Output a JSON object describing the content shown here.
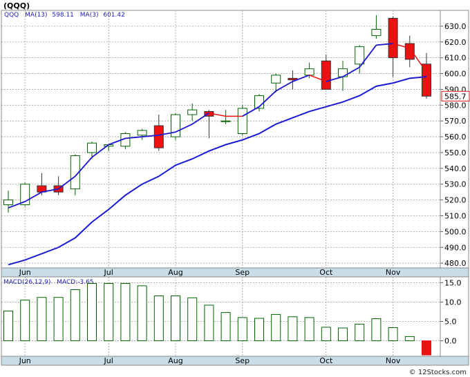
{
  "header": {
    "symbol_title": "(QQQ)"
  },
  "price_panel": {
    "legend": {
      "symbol": "QQQ",
      "ma_long_label": "MA(13)",
      "ma_long_value": "598.11",
      "ma_short_label": "MA(3)",
      "ma_short_value": "601.42"
    },
    "last_price_label": "585.7",
    "last_price_value": 585.7,
    "y_ticks": [
      "480.0",
      "490.0",
      "500.0",
      "510.0",
      "520.0",
      "530.0",
      "540.0",
      "550.0",
      "560.0",
      "570.0",
      "580.0",
      "590.0",
      "600.0",
      "610.0",
      "620.0",
      "630.0"
    ],
    "y_tick_values": [
      480,
      490,
      500,
      510,
      520,
      530,
      540,
      550,
      560,
      570,
      580,
      590,
      600,
      610,
      620,
      630
    ],
    "x_labels": [
      "Jun",
      "Jul",
      "Aug",
      "Sep",
      "Oct",
      "Nov"
    ],
    "x_label_weeks": [
      1.0,
      6.0,
      10.0,
      14.0,
      19.0,
      23.0
    ]
  },
  "macd_panel": {
    "legend": {
      "label": "MACD(26,12,9)",
      "value_label": "MACD:-3.65"
    },
    "y_ticks": [
      "15.0",
      "10.0",
      "5.0",
      "0.0"
    ],
    "y_tick_values": [
      15,
      10,
      5,
      0
    ],
    "x_labels": [
      "Jun",
      "Jul",
      "Aug",
      "Sep",
      "Oct",
      "Nov"
    ]
  },
  "footer": {
    "credit": "© 12Stocks.com"
  },
  "colors": {
    "up_candle_fill": "#ffffff",
    "up_candle_stroke": "#006400",
    "down_candle_fill": "#ee1111",
    "ma_short": "#ee1111",
    "ma_long": "#1a1ad6",
    "legend_text": "#2020c0",
    "axis_band": "#c8dde8",
    "macd_bar_stroke": "#006400",
    "macd_negative": "#ee1111"
  },
  "chart_data": [
    {
      "type": "candlestick",
      "title": "(QQQ)",
      "frequency": "weekly",
      "ylim": [
        477,
        640
      ],
      "grid": true,
      "x_axis_labels": [
        "Jun",
        "Jul",
        "Aug",
        "Sep",
        "Oct",
        "Nov"
      ],
      "candles": [
        {
          "o": 517,
          "h": 526,
          "l": 512,
          "c": 520
        },
        {
          "o": 517,
          "h": 531,
          "l": 516,
          "c": 530
        },
        {
          "o": 529,
          "h": 537,
          "l": 523,
          "c": 525
        },
        {
          "o": 529,
          "h": 535,
          "l": 523,
          "c": 525
        },
        {
          "o": 527,
          "h": 549,
          "l": 523,
          "c": 548
        },
        {
          "o": 550,
          "h": 557,
          "l": 546,
          "c": 556
        },
        {
          "o": 554,
          "h": 555,
          "l": 551,
          "c": 555
        },
        {
          "o": 554,
          "h": 563,
          "l": 552,
          "c": 562
        },
        {
          "o": 561,
          "h": 565,
          "l": 558,
          "c": 564
        },
        {
          "o": 567,
          "h": 574,
          "l": 551,
          "c": 553
        },
        {
          "o": 560,
          "h": 575,
          "l": 558,
          "c": 574
        },
        {
          "o": 574,
          "h": 581,
          "l": 570,
          "c": 577
        },
        {
          "o": 576,
          "h": 577,
          "l": 559,
          "c": 573
        },
        {
          "o": 570,
          "h": 577,
          "l": 568,
          "c": 570
        },
        {
          "o": 562,
          "h": 580,
          "l": 561,
          "c": 578
        },
        {
          "o": 578,
          "h": 587,
          "l": 576,
          "c": 586
        },
        {
          "o": 594,
          "h": 600,
          "l": 588,
          "c": 599
        },
        {
          "o": 597,
          "h": 602,
          "l": 590,
          "c": 596
        },
        {
          "o": 599,
          "h": 607,
          "l": 597,
          "c": 603
        },
        {
          "o": 608,
          "h": 612,
          "l": 591,
          "c": 590
        },
        {
          "o": 598,
          "h": 608,
          "l": 589,
          "c": 603
        },
        {
          "o": 606,
          "h": 618,
          "l": 600,
          "c": 617
        },
        {
          "o": 624,
          "h": 637,
          "l": 622,
          "c": 628
        },
        {
          "o": 635,
          "h": 636,
          "l": 598,
          "c": 610
        },
        {
          "o": 619,
          "h": 624,
          "l": 604,
          "c": 609
        },
        {
          "o": 606,
          "h": 613,
          "l": 584,
          "c": 585.7
        }
      ],
      "series": [
        {
          "name": "MA(13)",
          "values": [
            479,
            482,
            486,
            490,
            496,
            506,
            514,
            523,
            530,
            535,
            542,
            546,
            551,
            555,
            558,
            562,
            568,
            572,
            576,
            579,
            582,
            586,
            592,
            594,
            597,
            598
          ]
        },
        {
          "name": "MA(3)",
          "values": [
            515,
            519,
            525,
            527,
            535,
            547,
            555,
            559,
            560,
            561,
            563,
            568,
            575,
            573,
            573,
            579,
            589,
            595,
            599,
            595,
            598,
            604,
            618,
            619,
            616,
            601
          ]
        }
      ]
    },
    {
      "type": "bar",
      "title": "MACD(26,12,9)",
      "ylim": [
        -4,
        16.5
      ],
      "grid": true,
      "x_axis_labels": [
        "Jun",
        "Jul",
        "Aug",
        "Sep",
        "Oct",
        "Nov"
      ],
      "values": [
        7.7,
        10.5,
        11.2,
        11.2,
        13.2,
        14.8,
        14.8,
        14.8,
        14.2,
        11.6,
        11.6,
        11.1,
        9.2,
        7.3,
        6.0,
        5.8,
        6.8,
        6.2,
        6.0,
        3.5,
        3.3,
        4.3,
        5.7,
        3.4,
        1.1,
        -3.65
      ]
    }
  ]
}
